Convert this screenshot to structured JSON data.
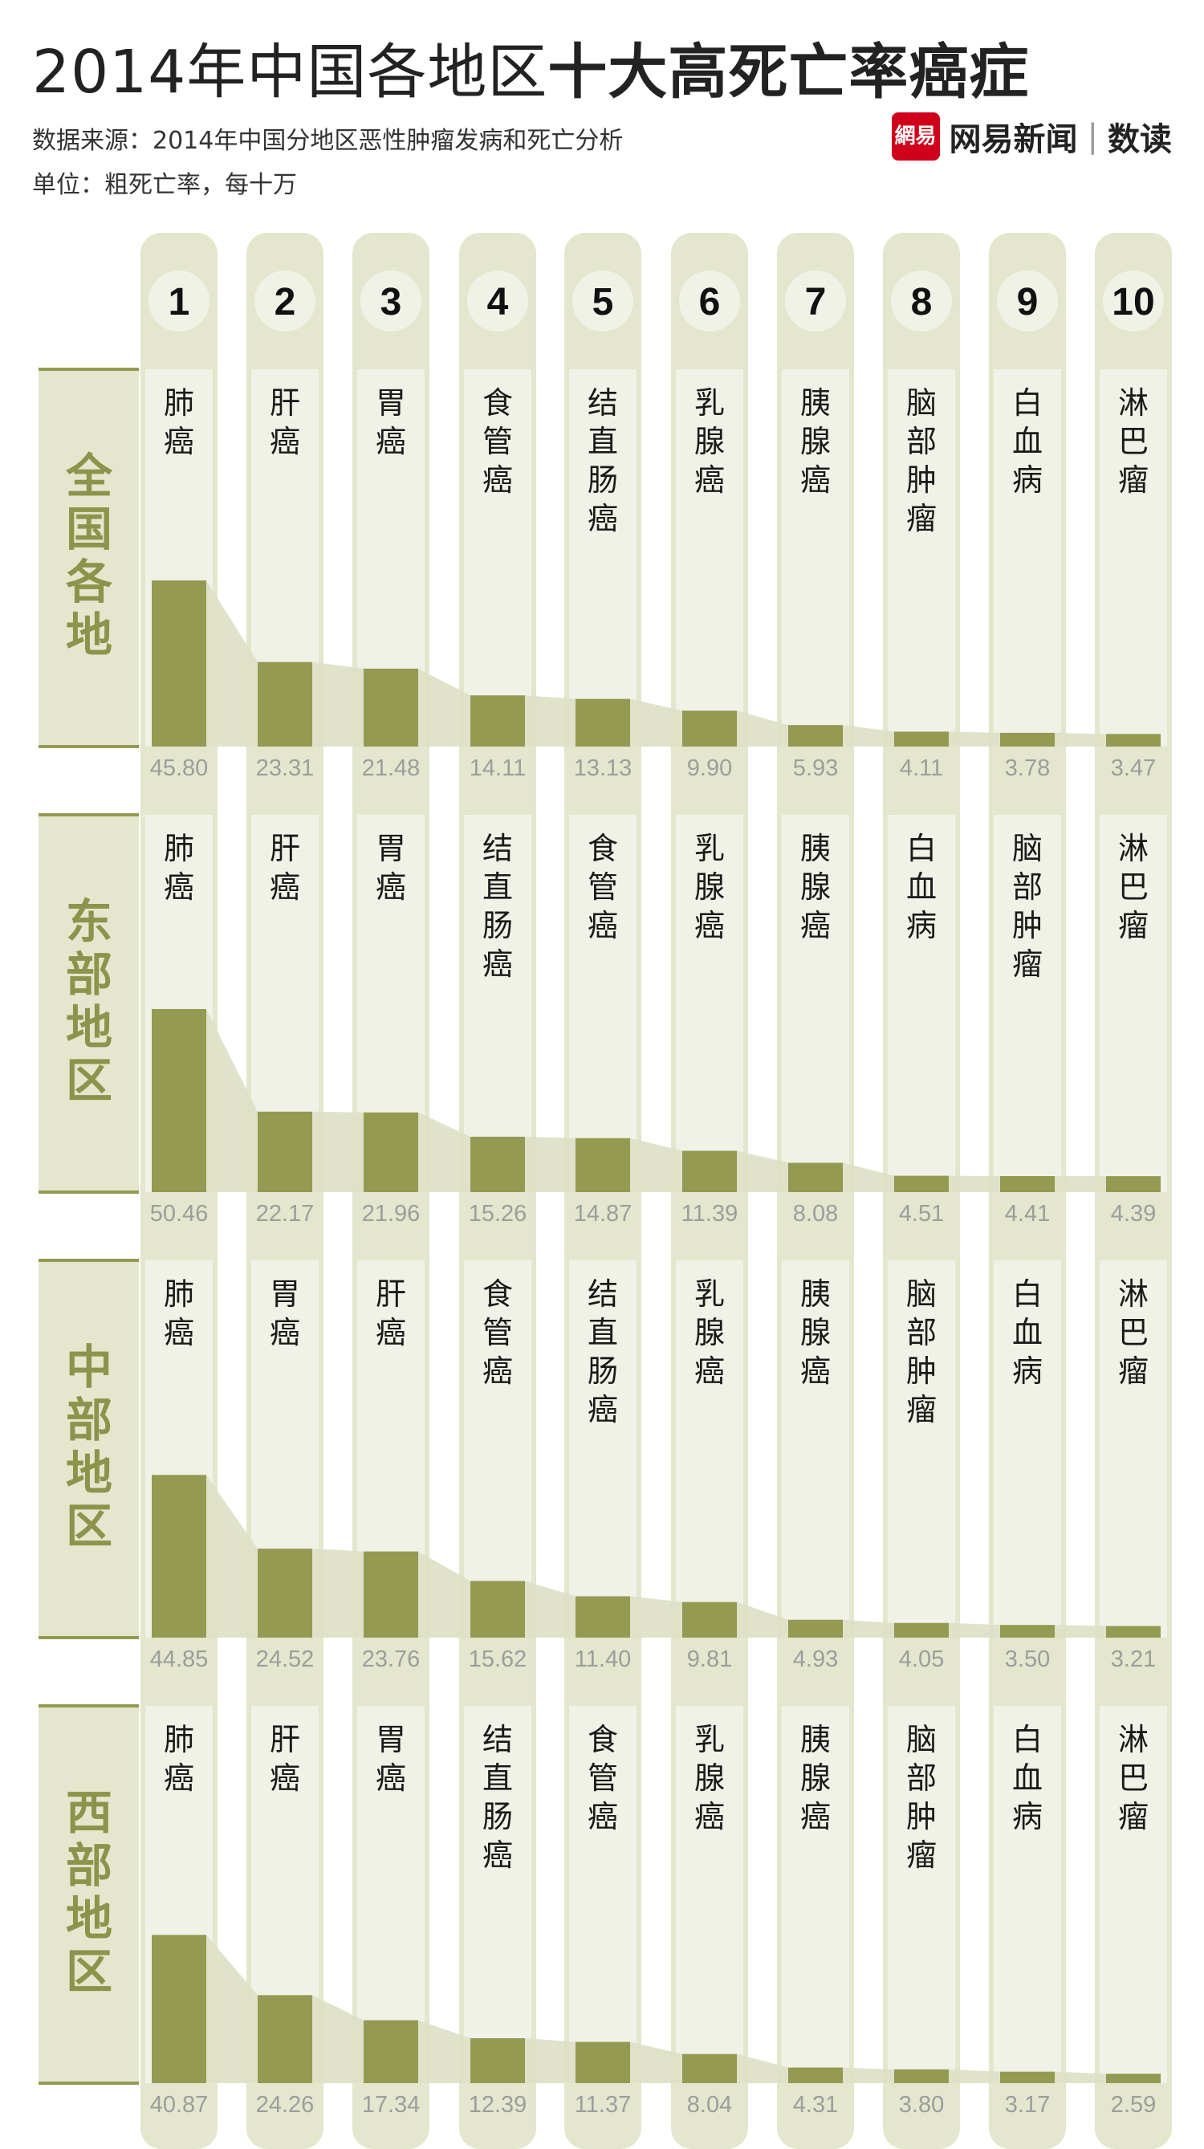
{
  "header": {
    "title_light": "2014年中国各地区",
    "title_bold": "十大高死亡率癌症",
    "source": "数据来源：2014年中国分地区恶性肿瘤发病和死亡分析",
    "unit": "单位：粗死亡率，每十万"
  },
  "logo": {
    "badge": "網易",
    "brand": "网易新闻",
    "separator": "|",
    "sub": "数读"
  },
  "colors": {
    "column_bg": "#e4e6cd",
    "column_inner": "#f1f2e7",
    "bar": "#949a52",
    "region_text": "#8d934b",
    "value_text": "#9d9d9d",
    "rank_circle": "#f1f2e7"
  },
  "chart_data": {
    "type": "bar",
    "title": "2014年中国各地区十大高死亡率癌症",
    "ylabel": "粗死亡率，每十万",
    "ranks": [
      "1",
      "2",
      "3",
      "4",
      "5",
      "6",
      "7",
      "8",
      "9",
      "10"
    ],
    "ylim": [
      0,
      52
    ],
    "panels": [
      {
        "region": "全国各地",
        "categories": [
          "肺癌",
          "肝癌",
          "胃癌",
          "食管癌",
          "结直肠癌",
          "乳腺癌",
          "胰腺癌",
          "脑部肿瘤",
          "白血病",
          "淋巴瘤"
        ],
        "values": [
          45.8,
          23.31,
          21.48,
          14.11,
          13.13,
          9.9,
          5.93,
          4.11,
          3.78,
          3.47
        ],
        "labels": [
          "45.80",
          "23.31",
          "21.48",
          "14.11",
          "13.13",
          "9.90",
          "5.93",
          "4.11",
          "3.78",
          "3.47"
        ]
      },
      {
        "region": "东部地区",
        "categories": [
          "肺癌",
          "肝癌",
          "胃癌",
          "结直肠癌",
          "食管癌",
          "乳腺癌",
          "胰腺癌",
          "白血病",
          "脑部肿瘤",
          "淋巴瘤"
        ],
        "values": [
          50.46,
          22.17,
          21.96,
          15.26,
          14.87,
          11.39,
          8.08,
          4.51,
          4.41,
          4.39
        ],
        "labels": [
          "50.46",
          "22.17",
          "21.96",
          "15.26",
          "14.87",
          "11.39",
          "8.08",
          "4.51",
          "4.41",
          "4.39"
        ]
      },
      {
        "region": "中部地区",
        "categories": [
          "肺癌",
          "胃癌",
          "肝癌",
          "食管癌",
          "结直肠癌",
          "乳腺癌",
          "胰腺癌",
          "脑部肿瘤",
          "白血病",
          "淋巴瘤"
        ],
        "values": [
          44.85,
          24.52,
          23.76,
          15.62,
          11.4,
          9.81,
          4.93,
          4.05,
          3.5,
          3.21
        ],
        "labels": [
          "44.85",
          "24.52",
          "23.76",
          "15.62",
          "11.40",
          "9.81",
          "4.93",
          "4.05",
          "3.50",
          "3.21"
        ]
      },
      {
        "region": "西部地区",
        "categories": [
          "肺癌",
          "肝癌",
          "胃癌",
          "结直肠癌",
          "食管癌",
          "乳腺癌",
          "胰腺癌",
          "脑部肿瘤",
          "白血病",
          "淋巴瘤"
        ],
        "values": [
          40.87,
          24.26,
          17.34,
          12.39,
          11.37,
          8.04,
          4.31,
          3.8,
          3.17,
          2.59
        ],
        "labels": [
          "40.87",
          "24.26",
          "17.34",
          "12.39",
          "11.37",
          "8.04",
          "4.31",
          "3.80",
          "3.17",
          "2.59"
        ]
      }
    ]
  }
}
